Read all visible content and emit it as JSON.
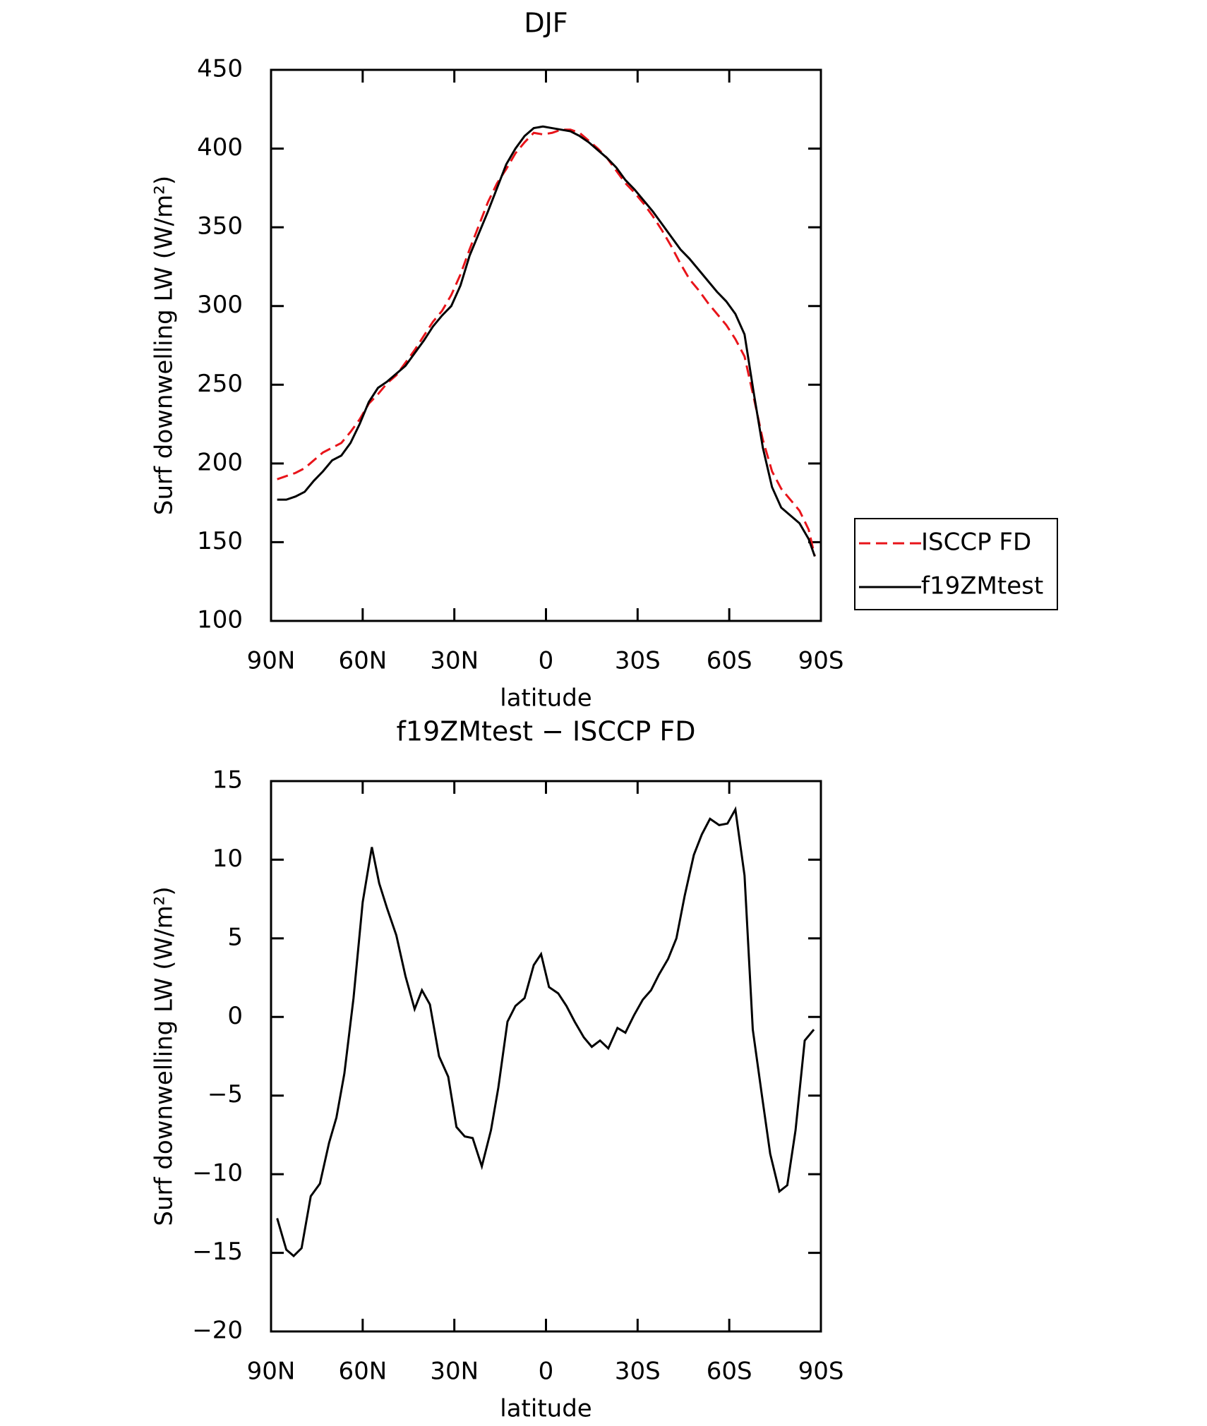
{
  "chart_data": [
    {
      "type": "line",
      "title": "DJF",
      "xlabel": "latitude",
      "ylabel": "Surf downwelling LW (W/m²)",
      "x": [
        88,
        85,
        82,
        79,
        76,
        73,
        70,
        67,
        64,
        61,
        58,
        55,
        52,
        49,
        46,
        43,
        40,
        37,
        34,
        31,
        28,
        25,
        22,
        19,
        16,
        13,
        10,
        7,
        4,
        1,
        -2,
        -5,
        -8,
        -11,
        -14,
        -17,
        -20,
        -23,
        -26,
        -29,
        -32,
        -35,
        -38,
        -41,
        -44,
        -47,
        -50,
        -53,
        -56,
        -59,
        -62,
        -65,
        -68,
        -71,
        -74,
        -77,
        -80,
        -83,
        -86,
        -88
      ],
      "series": [
        {
          "name": "ISCCP FD",
          "color": "#e8141a",
          "dash": true,
          "values": [
            190,
            192,
            194,
            197,
            202,
            207,
            210,
            213,
            220,
            228,
            238,
            244,
            251,
            256,
            264,
            272,
            281,
            290,
            297,
            307,
            320,
            336,
            351,
            366,
            378,
            387,
            397,
            404,
            410,
            409,
            410,
            412,
            412,
            410,
            405,
            400,
            394,
            386,
            378,
            372,
            365,
            357,
            348,
            338,
            327,
            317,
            310,
            302,
            295,
            288,
            279,
            268,
            242,
            215,
            195,
            184,
            177,
            170,
            158,
            141
          ]
        },
        {
          "name": "f19ZMtest",
          "color": "#000000",
          "dash": false,
          "values": [
            177,
            177,
            179,
            182,
            189,
            195,
            202,
            205,
            213,
            225,
            239,
            248,
            252,
            257,
            262,
            270,
            278,
            287,
            294,
            300,
            313,
            332,
            346,
            360,
            375,
            390,
            400,
            408,
            413,
            414,
            413,
            412,
            411,
            408,
            404,
            399,
            394,
            388,
            380,
            374,
            367,
            360,
            352,
            344,
            336,
            330,
            323,
            316,
            309,
            303,
            295,
            282,
            245,
            210,
            185,
            172,
            167,
            162,
            152,
            141
          ]
        }
      ],
      "xlim": [
        90,
        -90
      ],
      "xticks": [
        {
          "value": 90,
          "label": "90N"
        },
        {
          "value": 60,
          "label": "60N"
        },
        {
          "value": 30,
          "label": "30N"
        },
        0,
        {
          "value": -30,
          "label": "30S"
        },
        {
          "value": -60,
          "label": "60S"
        },
        {
          "value": -90,
          "label": "90S"
        }
      ],
      "ylim": [
        100,
        450
      ],
      "yticks": [
        100,
        150,
        200,
        250,
        300,
        350,
        400,
        450
      ],
      "legend": "right"
    },
    {
      "type": "line",
      "title": "f19ZMtest − ISCCP FD",
      "xlabel": "latitude",
      "ylabel": "Surf downwelling LW (W/m²)",
      "x": [
        88,
        85,
        82.6,
        80,
        77,
        74,
        71,
        68.6,
        66,
        63,
        60,
        57,
        54.6,
        52,
        49,
        46,
        43,
        40.6,
        38,
        35,
        32,
        29.3,
        26.6,
        24,
        21,
        18,
        15.6,
        12.6,
        10,
        7,
        4,
        1.6,
        -1,
        -4,
        -6.7,
        -9.4,
        -12.4,
        -15,
        -17.7,
        -20.4,
        -23.4,
        -26,
        -28.8,
        -31.7,
        -34.4,
        -37,
        -40,
        -42.7,
        -45.4,
        -48.4,
        -51,
        -53.7,
        -56.7,
        -59.4,
        -62,
        -65,
        -67.7,
        -70.7,
        -73.4,
        -76.4,
        -79,
        -81.7,
        -84.7,
        -87.7
      ],
      "series": [
        {
          "color": "#000000",
          "dash": false,
          "values": [
            -12.8,
            -14.8,
            -15.2,
            -14.7,
            -11.4,
            -10.6,
            -8,
            -6.4,
            -3.6,
            1.2,
            7.3,
            10.8,
            8.5,
            6.9,
            5.2,
            2.6,
            0.5,
            1.7,
            0.8,
            -2.5,
            -3.8,
            -7,
            -7.6,
            -7.7,
            -9.5,
            -7.2,
            -4.5,
            -0.3,
            0.7,
            1.2,
            3.3,
            4,
            1.9,
            1.5,
            0.7,
            -0.3,
            -1.3,
            -1.9,
            -1.5,
            -2,
            -0.7,
            -1,
            0.1,
            1.1,
            1.7,
            2.7,
            3.7,
            5,
            7.7,
            10.3,
            11.6,
            12.6,
            12.2,
            12.3,
            13.2,
            9,
            -0.8,
            -5,
            -8.7,
            -11.1,
            -10.7,
            -7.2,
            -1.5,
            -0.8
          ]
        }
      ],
      "xlim": [
        90,
        -90
      ],
      "xticks": [
        {
          "value": 90,
          "label": "90N"
        },
        {
          "value": 60,
          "label": "60N"
        },
        {
          "value": 30,
          "label": "30N"
        },
        0,
        {
          "value": -30,
          "label": "30S"
        },
        {
          "value": -60,
          "label": "60S"
        },
        {
          "value": -90,
          "label": "90S"
        }
      ],
      "ylim": [
        -20,
        15
      ],
      "yticks": [
        {
          "value": -20,
          "label": "−20"
        },
        {
          "value": -15,
          "label": "−15"
        },
        {
          "value": -10,
          "label": "−10"
        },
        {
          "value": -5,
          "label": "−5"
        },
        0,
        5,
        10,
        15
      ]
    }
  ]
}
